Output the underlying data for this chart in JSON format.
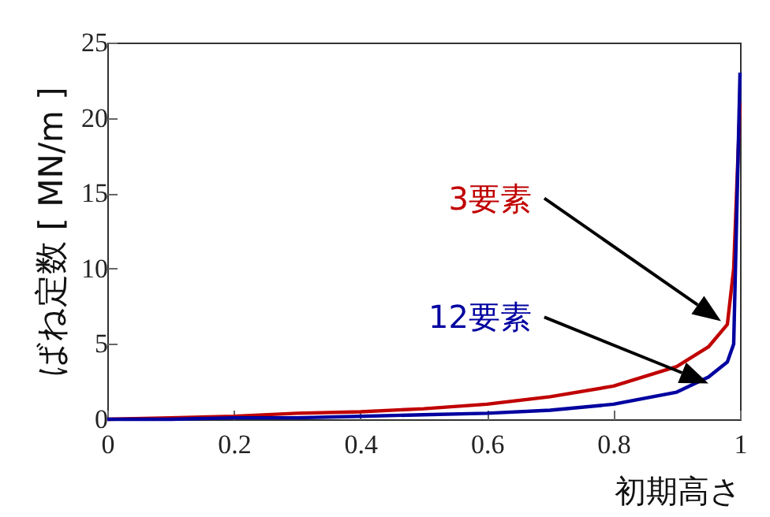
{
  "chart_data": {
    "type": "line",
    "xlabel": "初期高さ",
    "ylabel": "ばね定数 [ MN/m ]",
    "x": [
      0,
      0.1,
      0.2,
      0.3,
      0.4,
      0.5,
      0.6,
      0.7,
      0.8,
      0.9,
      0.95,
      0.98,
      0.99,
      1.0
    ],
    "series": [
      {
        "name": "3要素",
        "color": "#c00000",
        "values": [
          0,
          0.1,
          0.2,
          0.4,
          0.5,
          0.7,
          1.0,
          1.5,
          2.2,
          3.5,
          4.8,
          6.3,
          10,
          21
        ]
      },
      {
        "name": "12要素",
        "color": "#0000a0",
        "values": [
          0,
          0,
          0.1,
          0.1,
          0.2,
          0.3,
          0.4,
          0.6,
          1.0,
          1.8,
          2.8,
          3.8,
          5,
          23
        ]
      }
    ],
    "xlim": [
      0,
      1
    ],
    "xticks": [
      0,
      0.2,
      0.4,
      0.6,
      0.8,
      1
    ],
    "ylim": [
      0,
      25
    ],
    "yticks": [
      0,
      5,
      10,
      15,
      20,
      25
    ],
    "grid": false,
    "legend": false,
    "marker": "none",
    "line_style": "solid"
  }
}
